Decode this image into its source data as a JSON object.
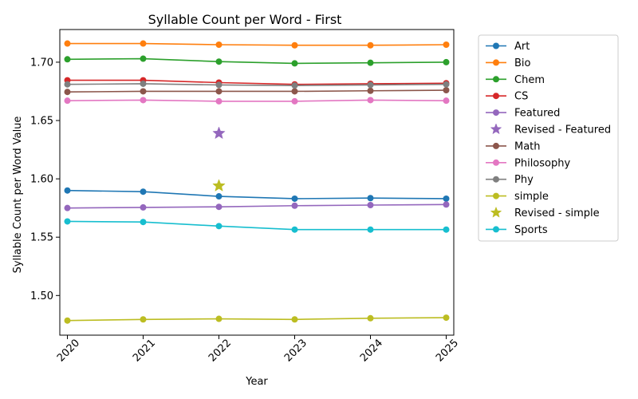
{
  "chart_data": {
    "type": "line",
    "title": "Syllable Count per Word - First",
    "xlabel": "Year",
    "ylabel": "Syllable Count per Word Value",
    "x": [
      2020,
      2021,
      2022,
      2023,
      2024,
      2025
    ],
    "xlim": [
      2019.9,
      2025.1
    ],
    "ylim": [
      1.466,
      1.728
    ],
    "yticks": [
      1.5,
      1.55,
      1.6,
      1.65,
      1.7
    ],
    "ytick_labels": [
      "1.50",
      "1.55",
      "1.60",
      "1.65",
      "1.70"
    ],
    "xtick_labels": [
      "2020",
      "2021",
      "2022",
      "2023",
      "2024",
      "2025"
    ],
    "grid": false,
    "legend_position": "outside-right",
    "series": [
      {
        "name": "Art",
        "color": "#1f77b4",
        "values": [
          1.59,
          1.589,
          1.585,
          1.583,
          1.5835,
          1.583
        ]
      },
      {
        "name": "Bio",
        "color": "#ff7f0e",
        "values": [
          1.716,
          1.716,
          1.715,
          1.7145,
          1.7145,
          1.715
        ]
      },
      {
        "name": "Chem",
        "color": "#2ca02c",
        "values": [
          1.7025,
          1.703,
          1.7005,
          1.699,
          1.6995,
          1.7
        ]
      },
      {
        "name": "CS",
        "color": "#d62728",
        "values": [
          1.6845,
          1.6845,
          1.6825,
          1.681,
          1.6815,
          1.682
        ]
      },
      {
        "name": "Featured",
        "color": "#9467bd",
        "values": [
          1.575,
          1.5755,
          1.576,
          1.577,
          1.5775,
          1.578
        ]
      },
      {
        "name": "Revised - Featured",
        "color": "#9467bd",
        "marker": "star",
        "points": [
          {
            "x": 2022,
            "y": 1.639
          }
        ]
      },
      {
        "name": "Math",
        "color": "#8c564b",
        "values": [
          1.6745,
          1.675,
          1.675,
          1.675,
          1.6755,
          1.676
        ]
      },
      {
        "name": "Philosophy",
        "color": "#e377c2",
        "values": [
          1.667,
          1.6675,
          1.6665,
          1.6665,
          1.6675,
          1.667
        ]
      },
      {
        "name": "Phy",
        "color": "#7f7f7f",
        "values": [
          1.681,
          1.6815,
          1.6805,
          1.68,
          1.6805,
          1.681
        ]
      },
      {
        "name": "simple",
        "color": "#bcbd22",
        "values": [
          1.4785,
          1.4795,
          1.48,
          1.4795,
          1.4805,
          1.481
        ]
      },
      {
        "name": "Revised - simple",
        "color": "#bcbd22",
        "marker": "star",
        "points": [
          {
            "x": 2022,
            "y": 1.594
          }
        ]
      },
      {
        "name": "Sports",
        "color": "#17becf",
        "values": [
          1.5635,
          1.563,
          1.5595,
          1.5565,
          1.5565,
          1.5565
        ]
      }
    ]
  }
}
